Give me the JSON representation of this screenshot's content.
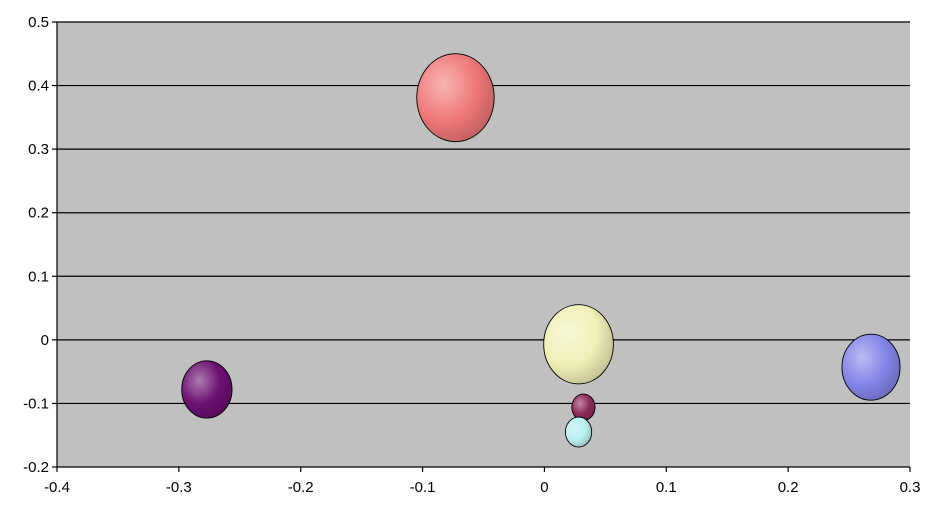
{
  "chart_data": {
    "type": "bubble",
    "title": "",
    "xlabel": "",
    "ylabel": "",
    "xlim": [
      -0.4,
      0.3
    ],
    "ylim": [
      -0.2,
      0.5
    ],
    "grid": "horizontal",
    "legend": "none",
    "plot_background": "#c0c0c0",
    "x_ticks": [
      "-0.4",
      "-0.3",
      "-0.2",
      "-0.1",
      "0",
      "0.1",
      "0.2",
      "0.3"
    ],
    "y_ticks": [
      "0.5",
      "0.4",
      "0.3",
      "0.2",
      "0.1",
      "0",
      "-0.1",
      "-0.2"
    ],
    "points": [
      {
        "x": -0.073,
        "y": 0.381,
        "size": 1.0,
        "color": "#f07878"
      },
      {
        "x": 0.028,
        "y": -0.007,
        "size": 0.9,
        "color": "#f0f0b8"
      },
      {
        "x": 0.268,
        "y": -0.043,
        "size": 0.75,
        "color": "#8484e8"
      },
      {
        "x": -0.277,
        "y": -0.078,
        "size": 0.65,
        "color": "#6b1070"
      },
      {
        "x": 0.032,
        "y": -0.106,
        "size": 0.3,
        "color": "#8c2a5a"
      },
      {
        "x": 0.028,
        "y": -0.145,
        "size": 0.34,
        "color": "#b8f0f0"
      }
    ]
  }
}
